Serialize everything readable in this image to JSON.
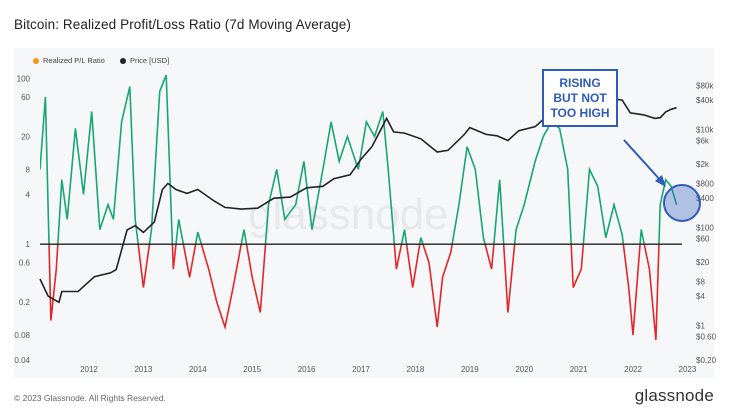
{
  "title": "Bitcoin: Realized Profit/Loss Ratio (7d Moving Average)",
  "legend": [
    {
      "label": "Realized P/L Ratio",
      "color": "#f7931a"
    },
    {
      "label": "Price [USD]",
      "color": "#222222"
    }
  ],
  "watermark": "glassnode",
  "annotation": {
    "lines": [
      "RISING",
      "BUT NOT",
      "TOO HIGH"
    ],
    "color": "#2f5bbd"
  },
  "footer": {
    "copyright": "© 2023 Glassnode. All Rights Reserved.",
    "brand": "glassnode"
  },
  "chart_data": {
    "type": "line",
    "title": "Bitcoin: Realized Profit/Loss Ratio (7d Moving Average)",
    "x_ticks": [
      "2012",
      "2013",
      "2014",
      "2015",
      "2016",
      "2017",
      "2018",
      "2019",
      "2020",
      "2021",
      "2022",
      "2023"
    ],
    "x_range": [
      2011.6,
      2023.4
    ],
    "left_axis": {
      "scale": "log",
      "ticks": [
        "100",
        "60",
        "20",
        "8",
        "4",
        "1",
        "0.6",
        "0.2",
        "0.08",
        "0.04"
      ],
      "range": [
        0.04,
        120
      ],
      "baseline": 1
    },
    "right_axis": {
      "scale": "log",
      "ticks": [
        "$80k",
        "$40k",
        "$10k",
        "$6k",
        "$2k",
        "$800",
        "$400",
        "$100",
        "$60",
        "$20",
        "$8",
        "$4",
        "$1",
        "$0.60",
        "$0.20"
      ],
      "range": [
        0.2,
        150000
      ]
    },
    "colors": {
      "profit": "#16a772",
      "loss": "#e3262b",
      "price": "#222222"
    },
    "series": [
      {
        "name": "Price [USD]",
        "points": [
          [
            2011.6,
            9
          ],
          [
            2011.75,
            4
          ],
          [
            2011.95,
            3
          ],
          [
            2012.0,
            5
          ],
          [
            2012.3,
            5
          ],
          [
            2012.6,
            10
          ],
          [
            2012.9,
            12
          ],
          [
            2013.0,
            14
          ],
          [
            2013.2,
            90
          ],
          [
            2013.35,
            110
          ],
          [
            2013.5,
            80
          ],
          [
            2013.7,
            130
          ],
          [
            2013.85,
            600
          ],
          [
            2013.95,
            800
          ],
          [
            2014.1,
            600
          ],
          [
            2014.3,
            500
          ],
          [
            2014.5,
            600
          ],
          [
            2014.8,
            350
          ],
          [
            2015.0,
            260
          ],
          [
            2015.3,
            240
          ],
          [
            2015.6,
            250
          ],
          [
            2015.9,
            400
          ],
          [
            2016.2,
            420
          ],
          [
            2016.5,
            650
          ],
          [
            2016.8,
            700
          ],
          [
            2017.0,
            1000
          ],
          [
            2017.3,
            1200
          ],
          [
            2017.5,
            2500
          ],
          [
            2017.7,
            4500
          ],
          [
            2017.9,
            12000
          ],
          [
            2017.97,
            17000
          ],
          [
            2018.1,
            9000
          ],
          [
            2018.3,
            8500
          ],
          [
            2018.6,
            6500
          ],
          [
            2018.9,
            3500
          ],
          [
            2019.1,
            3800
          ],
          [
            2019.4,
            8000
          ],
          [
            2019.5,
            11000
          ],
          [
            2019.8,
            8000
          ],
          [
            2020.0,
            7500
          ],
          [
            2020.2,
            6000
          ],
          [
            2020.4,
            9500
          ],
          [
            2020.7,
            11500
          ],
          [
            2020.9,
            18000
          ],
          [
            2021.0,
            30000
          ],
          [
            2021.2,
            55000
          ],
          [
            2021.4,
            40000
          ],
          [
            2021.55,
            33000
          ],
          [
            2021.8,
            60000
          ],
          [
            2021.9,
            62000
          ],
          [
            2022.0,
            45000
          ],
          [
            2022.3,
            40000
          ],
          [
            2022.45,
            22000
          ],
          [
            2022.7,
            20000
          ],
          [
            2022.9,
            17000
          ],
          [
            2023.0,
            17500
          ],
          [
            2023.1,
            23000
          ],
          [
            2023.2,
            26000
          ],
          [
            2023.3,
            28000
          ]
        ]
      },
      {
        "name": "Realized P/L Ratio",
        "points": [
          [
            2011.6,
            8
          ],
          [
            2011.7,
            60
          ],
          [
            2011.8,
            0.12
          ],
          [
            2011.9,
            0.5
          ],
          [
            2012.0,
            6
          ],
          [
            2012.1,
            2
          ],
          [
            2012.25,
            25
          ],
          [
            2012.4,
            4
          ],
          [
            2012.55,
            40
          ],
          [
            2012.7,
            1.5
          ],
          [
            2012.85,
            3
          ],
          [
            2012.95,
            2
          ],
          [
            2013.1,
            30
          ],
          [
            2013.25,
            80
          ],
          [
            2013.35,
            2
          ],
          [
            2013.5,
            0.3
          ],
          [
            2013.65,
            1.5
          ],
          [
            2013.8,
            70
          ],
          [
            2013.92,
            110
          ],
          [
            2014.05,
            0.5
          ],
          [
            2014.15,
            2
          ],
          [
            2014.35,
            0.4
          ],
          [
            2014.5,
            1.4
          ],
          [
            2014.7,
            0.5
          ],
          [
            2014.85,
            0.2
          ],
          [
            2015.0,
            0.1
          ],
          [
            2015.15,
            0.3
          ],
          [
            2015.35,
            1.5
          ],
          [
            2015.5,
            0.4
          ],
          [
            2015.65,
            0.15
          ],
          [
            2015.8,
            3
          ],
          [
            2015.95,
            8
          ],
          [
            2016.1,
            2
          ],
          [
            2016.3,
            3
          ],
          [
            2016.45,
            10
          ],
          [
            2016.6,
            1.5
          ],
          [
            2016.8,
            8
          ],
          [
            2016.95,
            30
          ],
          [
            2017.1,
            10
          ],
          [
            2017.25,
            20
          ],
          [
            2017.45,
            8
          ],
          [
            2017.6,
            30
          ],
          [
            2017.75,
            20
          ],
          [
            2017.9,
            40
          ],
          [
            2018.0,
            8
          ],
          [
            2018.15,
            0.5
          ],
          [
            2018.3,
            1.5
          ],
          [
            2018.45,
            0.3
          ],
          [
            2018.6,
            1.2
          ],
          [
            2018.75,
            0.6
          ],
          [
            2018.9,
            0.1
          ],
          [
            2019.0,
            0.4
          ],
          [
            2019.15,
            0.8
          ],
          [
            2019.3,
            3
          ],
          [
            2019.45,
            15
          ],
          [
            2019.6,
            8
          ],
          [
            2019.75,
            1.2
          ],
          [
            2019.9,
            0.5
          ],
          [
            2020.05,
            6
          ],
          [
            2020.2,
            0.15
          ],
          [
            2020.35,
            1.5
          ],
          [
            2020.5,
            3
          ],
          [
            2020.7,
            10
          ],
          [
            2020.85,
            20
          ],
          [
            2021.0,
            30
          ],
          [
            2021.15,
            25
          ],
          [
            2021.3,
            8
          ],
          [
            2021.4,
            0.3
          ],
          [
            2021.55,
            0.5
          ],
          [
            2021.7,
            8
          ],
          [
            2021.85,
            5
          ],
          [
            2022.0,
            1.2
          ],
          [
            2022.15,
            3
          ],
          [
            2022.3,
            1.3
          ],
          [
            2022.42,
            0.3
          ],
          [
            2022.5,
            0.08
          ],
          [
            2022.65,
            1.5
          ],
          [
            2022.8,
            0.5
          ],
          [
            2022.92,
            0.07
          ],
          [
            2023.0,
            3
          ],
          [
            2023.1,
            6
          ],
          [
            2023.2,
            5
          ],
          [
            2023.3,
            3
          ]
        ]
      }
    ]
  }
}
